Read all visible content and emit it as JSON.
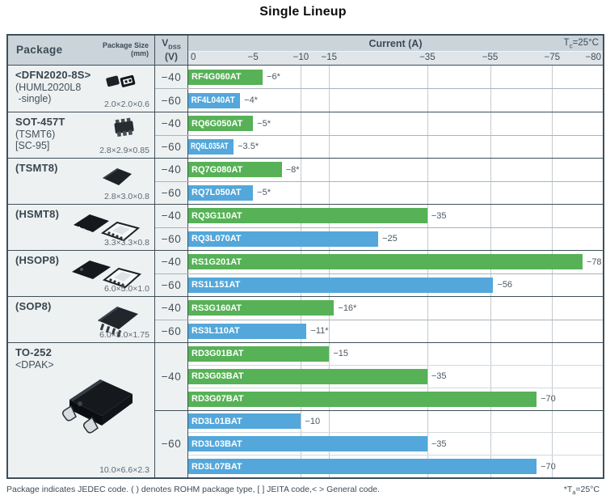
{
  "title": "Single Lineup",
  "header": {
    "package": "Package",
    "package_size_line1": "Package Size",
    "package_size_line2": "(mm)",
    "vdss_base": "V",
    "vdss_sub": "DSS",
    "vdss_unit": "(V)",
    "current": "Current (A)",
    "tc_base": "T",
    "tc_sub": "c",
    "tc_rest": "=25°C"
  },
  "footer": {
    "note": "Package indicates JEDEC code. ( ) denotes ROHM package type, [ ] JEITA code,< > General code.",
    "ta_base": "*T",
    "ta_sub": "a",
    "ta_rest": "=25°C"
  },
  "chart_data": {
    "type": "bar",
    "orientation": "horizontal",
    "title": "Single Lineup",
    "xlabel": "Current (A)",
    "condition": "Tc=25°C",
    "footnote_condition": "*Ta=25°C",
    "grid": true,
    "axis_scale": "piecewise-nonlinear",
    "xlim": [
      0,
      -80
    ],
    "scale_points": [
      [
        0,
        0
      ],
      [
        5,
        0.1563
      ],
      [
        10,
        0.2718
      ],
      [
        15,
        0.3398
      ],
      [
        35,
        0.5767
      ],
      [
        55,
        0.7282
      ],
      [
        75,
        0.8777
      ],
      [
        80,
        1
      ]
    ],
    "gridlines": [
      0.2718,
      0.3398,
      0.5767,
      0.7282,
      0.8777
    ],
    "x_axis": {
      "ticks": [
        {
          "label": "0",
          "pos": 0,
          "align": "left"
        },
        {
          "label": "−5",
          "pos": 0.1563,
          "align": "center"
        },
        {
          "label": "−10",
          "pos": 0.2718,
          "align": "center"
        },
        {
          "label": "−15",
          "pos": 0.3398,
          "align": "center"
        },
        {
          "label": "−35",
          "pos": 0.5767,
          "align": "center"
        },
        {
          "label": "−55",
          "pos": 0.7282,
          "align": "center"
        },
        {
          "label": "−75",
          "pos": 0.8777,
          "align": "center"
        },
        {
          "label": "−80",
          "pos": 1,
          "align": "right"
        }
      ]
    },
    "colors": {
      "vdss_minus40": "#57b157",
      "vdss_minus60": "#53a7da"
    },
    "sections": [
      {
        "package": {
          "lines": [
            {
              "text": "<DFN2020-8S>",
              "bold": true
            },
            {
              "text": "(HUML2020L8",
              "bold": false
            },
            {
              "text": " -single)",
              "bold": false
            }
          ],
          "size": "2.0×2.0×0.6",
          "icon": "dfn2020"
        },
        "groups": [
          {
            "vdss": "−40",
            "color": "green",
            "parts": [
              {
                "name": "RF4G060AT",
                "current": -6,
                "label": "−6*"
              }
            ]
          },
          {
            "vdss": "−60",
            "color": "blue",
            "parts": [
              {
                "name": "RF4L040AT",
                "current": -4,
                "label": "−4*"
              }
            ]
          }
        ]
      },
      {
        "package": {
          "lines": [
            {
              "text": "SOT-457T",
              "bold": true
            },
            {
              "text": "(TSMT6)",
              "bold": false
            },
            {
              "text": "[SC-95]",
              "bold": false
            }
          ],
          "size": "2.8×2.9×0.85",
          "icon": "sot457t"
        },
        "groups": [
          {
            "vdss": "−40",
            "color": "green",
            "parts": [
              {
                "name": "RQ6G050AT",
                "current": -5,
                "label": "−5*"
              }
            ]
          },
          {
            "vdss": "−60",
            "color": "blue",
            "parts": [
              {
                "name": "RQ6L035AT",
                "current": -3.5,
                "label": "−3.5*"
              }
            ]
          }
        ]
      },
      {
        "package": {
          "lines": [
            {
              "text": "(TSMT8)",
              "bold": true
            }
          ],
          "size": "2.8×3.0×0.8",
          "icon": "tsmt8"
        },
        "groups": [
          {
            "vdss": "−40",
            "color": "green",
            "parts": [
              {
                "name": "RQ7G080AT",
                "current": -8,
                "label": "−8*"
              }
            ]
          },
          {
            "vdss": "−60",
            "color": "blue",
            "parts": [
              {
                "name": "RQ7L050AT",
                "current": -5,
                "label": "−5*"
              }
            ]
          }
        ]
      },
      {
        "package": {
          "lines": [
            {
              "text": "(HSMT8)",
              "bold": true
            }
          ],
          "size": "3.3×3.3×0.8",
          "icon": "hsmt8"
        },
        "groups": [
          {
            "vdss": "−40",
            "color": "green",
            "parts": [
              {
                "name": "RQ3G110AT",
                "current": -35,
                "label": "−35"
              }
            ]
          },
          {
            "vdss": "−60",
            "color": "blue",
            "parts": [
              {
                "name": "RQ3L070AT",
                "current": -25,
                "label": "−25"
              }
            ]
          }
        ]
      },
      {
        "package": {
          "lines": [
            {
              "text": "(HSOP8)",
              "bold": true
            }
          ],
          "size": "6.0×5.0×1.0",
          "icon": "hsop8"
        },
        "groups": [
          {
            "vdss": "−40",
            "color": "green",
            "parts": [
              {
                "name": "RS1G201AT",
                "current": -78,
                "label": "−78"
              }
            ]
          },
          {
            "vdss": "−60",
            "color": "blue",
            "parts": [
              {
                "name": "RS1L151AT",
                "current": -56,
                "label": "−56"
              }
            ]
          }
        ]
      },
      {
        "package": {
          "lines": [
            {
              "text": "(SOP8)",
              "bold": true
            }
          ],
          "size": "6.0×5.0×1.75",
          "icon": "sop8"
        },
        "groups": [
          {
            "vdss": "−40",
            "color": "green",
            "parts": [
              {
                "name": "RS3G160AT",
                "current": -16,
                "label": "−16*"
              }
            ]
          },
          {
            "vdss": "−60",
            "color": "blue",
            "parts": [
              {
                "name": "RS3L110AT",
                "current": -11,
                "label": "−11*"
              }
            ]
          }
        ]
      },
      {
        "package": {
          "lines": [
            {
              "text": "TO-252",
              "bold": true
            },
            {
              "text": "<DPAK>",
              "bold": false
            }
          ],
          "size": "10.0×6.6×2.3",
          "icon": "to252"
        },
        "groups": [
          {
            "vdss": "−40",
            "color": "green",
            "parts": [
              {
                "name": "RD3G01BAT",
                "current": -15,
                "label": "−15"
              },
              {
                "name": "RD3G03BAT",
                "current": -35,
                "label": "−35"
              },
              {
                "name": "RD3G07BAT",
                "current": -70,
                "label": "−70"
              }
            ]
          },
          {
            "vdss": "−60",
            "color": "blue",
            "parts": [
              {
                "name": "RD3L01BAT",
                "current": -10,
                "label": "−10"
              },
              {
                "name": "RD3L03BAT",
                "current": -35,
                "label": "−35"
              },
              {
                "name": "RD3L07BAT",
                "current": -70,
                "label": "−70"
              }
            ]
          }
        ]
      }
    ]
  }
}
